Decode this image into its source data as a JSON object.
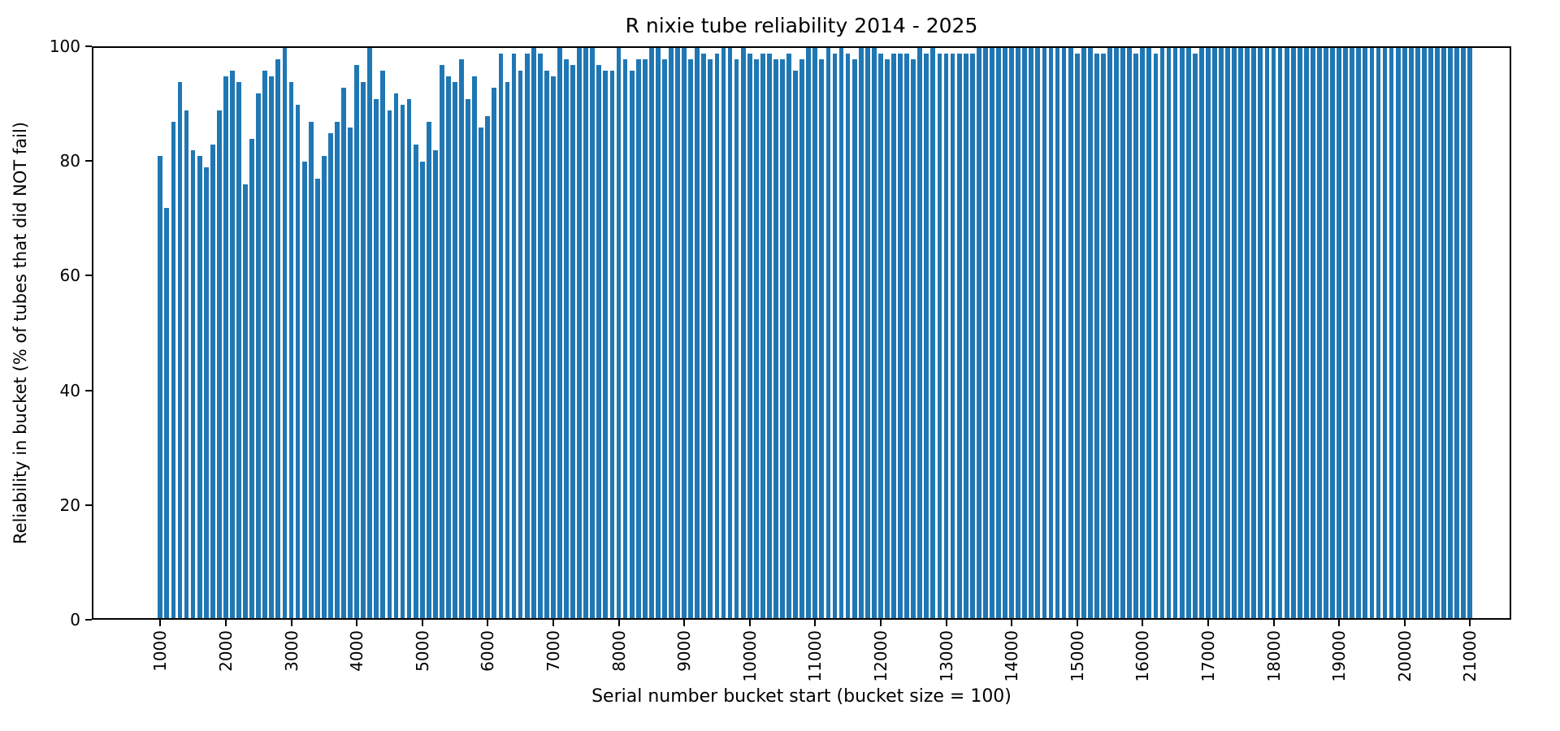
{
  "chart_data": {
    "type": "bar",
    "title": "R nixie tube reliability 2014 - 2025",
    "xlabel": "Serial number bucket start (bucket size = 100)",
    "ylabel": "Reliability in bucket (% of tubes that did NOT fail)",
    "bar_color": "#1f77b4",
    "axis_color": "#000000",
    "background_color": "#ffffff",
    "ylim": [
      0,
      100
    ],
    "yticks": [
      0,
      20,
      40,
      60,
      80,
      100
    ],
    "xticks": [
      1000,
      2000,
      3000,
      4000,
      5000,
      6000,
      7000,
      8000,
      9000,
      10000,
      11000,
      12000,
      13000,
      14000,
      15000,
      16000,
      17000,
      18000,
      19000,
      20000,
      21000
    ],
    "bucket_size": 100,
    "grid": false,
    "legend": null,
    "categories": [
      1000,
      1100,
      1200,
      1300,
      1400,
      1500,
      1600,
      1700,
      1800,
      1900,
      2000,
      2100,
      2200,
      2300,
      2400,
      2500,
      2600,
      2700,
      2800,
      2900,
      3000,
      3100,
      3200,
      3300,
      3400,
      3500,
      3600,
      3700,
      3800,
      3900,
      4000,
      4100,
      4200,
      4300,
      4400,
      4500,
      4600,
      4700,
      4800,
      4900,
      5000,
      5100,
      5200,
      5300,
      5400,
      5500,
      5600,
      5700,
      5800,
      5900,
      6000,
      6100,
      6200,
      6300,
      6400,
      6500,
      6600,
      6700,
      6800,
      6900,
      7000,
      7100,
      7200,
      7300,
      7400,
      7500,
      7600,
      7700,
      7800,
      7900,
      8000,
      8100,
      8200,
      8300,
      8400,
      8500,
      8600,
      8700,
      8800,
      8900,
      9000,
      9100,
      9200,
      9300,
      9400,
      9500,
      9600,
      9700,
      9800,
      9900,
      10000,
      10100,
      10200,
      10300,
      10400,
      10500,
      10600,
      10700,
      10800,
      10900,
      11000,
      11100,
      11200,
      11300,
      11400,
      11500,
      11600,
      11700,
      11800,
      11900,
      12000,
      12100,
      12200,
      12300,
      12400,
      12500,
      12600,
      12700,
      12800,
      12900,
      13000,
      13100,
      13200,
      13300,
      13400,
      13500,
      13600,
      13700,
      13800,
      13900,
      14000,
      14100,
      14200,
      14300,
      14400,
      14500,
      14600,
      14700,
      14800,
      14900,
      15000,
      15100,
      15200,
      15300,
      15400,
      15500,
      15600,
      15700,
      15800,
      15900,
      16000,
      16100,
      16200,
      16300,
      16400,
      16500,
      16600,
      16700,
      16800,
      16900,
      17000,
      17100,
      17200,
      17300,
      17400,
      17500,
      17600,
      17700,
      17800,
      17900,
      18000,
      18100,
      18200,
      18300,
      18400,
      18500,
      18600,
      18700,
      18800,
      18900,
      19000,
      19100,
      19200,
      19300,
      19400,
      19500,
      19600,
      19700,
      19800,
      19900,
      20000,
      20100,
      20200,
      20300,
      20400,
      20500,
      20600,
      20700,
      20800,
      20900,
      21000
    ],
    "values": [
      81,
      72,
      87,
      94,
      89,
      82,
      81,
      79,
      83,
      89,
      95,
      96,
      94,
      76,
      84,
      92,
      96,
      95,
      98,
      100,
      94,
      90,
      80,
      87,
      77,
      81,
      85,
      87,
      93,
      86,
      97,
      94,
      100,
      91,
      96,
      89,
      92,
      90,
      91,
      83,
      80,
      87,
      82,
      97,
      95,
      94,
      98,
      91,
      95,
      86,
      88,
      93,
      99,
      94,
      99,
      96,
      99,
      100,
      99,
      96,
      95,
      100,
      98,
      97,
      100,
      100,
      100,
      97,
      96,
      96,
      100,
      98,
      96,
      98,
      98,
      100,
      100,
      98,
      100,
      100,
      100,
      98,
      100,
      99,
      98,
      99,
      100,
      100,
      98,
      100,
      99,
      98,
      99,
      99,
      98,
      98,
      99,
      96,
      98,
      100,
      100,
      98,
      100,
      99,
      100,
      99,
      98,
      100,
      100,
      100,
      99,
      98,
      99,
      99,
      99,
      98,
      100,
      99,
      100,
      99,
      99,
      99,
      99,
      99,
      99,
      100,
      100,
      100,
      100,
      100,
      100,
      100,
      100,
      100,
      100,
      100,
      100,
      100,
      100,
      100,
      99,
      100,
      100,
      99,
      99,
      100,
      100,
      100,
      100,
      99,
      100,
      100,
      99,
      100,
      100,
      100,
      100,
      100,
      99,
      100,
      100,
      100,
      100,
      100,
      100,
      100,
      100,
      100,
      100,
      100,
      100,
      100,
      100,
      100,
      100,
      100,
      100,
      100,
      100,
      100,
      100,
      100,
      100,
      100,
      100,
      100,
      100,
      100,
      100,
      100,
      100,
      100,
      100,
      100,
      100,
      100,
      100,
      100,
      100,
      100,
      100
    ]
  }
}
